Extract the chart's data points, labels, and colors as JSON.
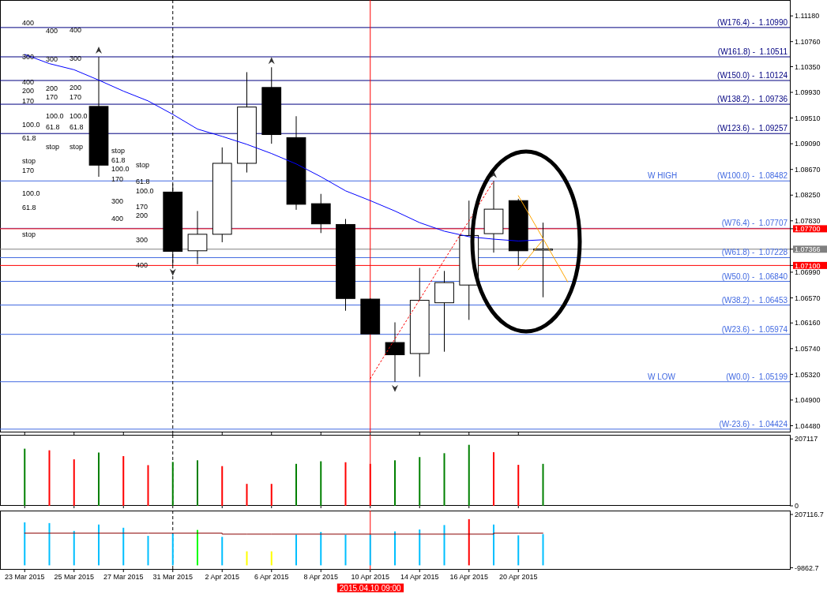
{
  "chart_data": [
    {
      "type": "candlestick",
      "categories": [
        "23 Mar 2015",
        null,
        "25 Mar 2015",
        null,
        "27 Mar 2015",
        null,
        "31 Mar 2015",
        null,
        "2 Apr 2015",
        null,
        "6 Apr 2015",
        null,
        "8 Apr 2015",
        null,
        "10 Apr 2015",
        null,
        "14 Apr 2015",
        null,
        "16 Apr 2015",
        null,
        "20 Apr 2015",
        null,
        null,
        null,
        null,
        null,
        null,
        null,
        null,
        null,
        null
      ],
      "ohlc": [
        null,
        null,
        null,
        [
          1.097,
          1.1051,
          1.0855,
          1.0874
        ],
        null,
        null,
        [
          1.083,
          1.0843,
          1.071,
          1.0733
        ],
        [
          1.0734,
          1.0799,
          1.0712,
          1.0761
        ],
        [
          1.0761,
          1.0903,
          1.0748,
          1.0877
        ],
        [
          1.0877,
          1.1026,
          1.0862,
          1.0969
        ],
        [
          1.1001,
          1.1034,
          1.0909,
          1.0924
        ],
        [
          1.0919,
          1.0954,
          1.0801,
          1.081
        ],
        [
          1.0811,
          1.0827,
          1.0763,
          1.0778
        ],
        [
          1.0777,
          1.0786,
          1.0636,
          1.0656
        ],
        [
          1.0655,
          1.0656,
          1.0598,
          1.0598
        ],
        [
          1.0584,
          1.0617,
          1.052,
          1.0564
        ],
        [
          1.0566,
          1.0706,
          1.0528,
          1.0653
        ],
        [
          1.0649,
          1.0701,
          1.0569,
          1.0682
        ],
        [
          1.0678,
          1.0816,
          1.0621,
          1.0759
        ],
        [
          1.0762,
          1.0848,
          1.0731,
          1.0802
        ],
        [
          1.0816,
          1.0819,
          1.071,
          1.0734
        ],
        [
          1.0735,
          1.078,
          1.0658,
          1.0737
        ],
        null,
        null,
        null,
        null,
        null,
        null,
        null,
        null,
        null
      ],
      "series": [
        {
          "type": "line",
          "color": "#0000ff",
          "values": [
            1.1055,
            1.104,
            1.103,
            1.1013,
            1.0995,
            1.0979,
            1.0957,
            1.0933,
            1.0921,
            1.0908,
            1.0893,
            1.0876,
            1.0855,
            1.0832,
            1.0816,
            1.0799,
            1.078,
            1.0766,
            1.0757,
            1.0753,
            1.075,
            1.0752,
            null,
            null,
            null,
            null,
            null,
            null,
            null,
            null,
            null
          ]
        },
        {
          "type": "line",
          "color": "#ff0000",
          "line_style": "dotted",
          "values": [
            null,
            null,
            null,
            null,
            null,
            null,
            null,
            null,
            null,
            null,
            null,
            null,
            null,
            null,
            1.0525,
            1.059,
            1.0654,
            1.0719,
            1.0783,
            1.0848,
            null,
            null,
            null,
            null,
            null,
            null,
            null,
            null,
            null,
            null,
            null
          ]
        },
        {
          "type": "line",
          "color": "#ffa500",
          "values": [
            null,
            null,
            null,
            null,
            null,
            null,
            null,
            null,
            null,
            null,
            null,
            null,
            null,
            null,
            null,
            null,
            null,
            null,
            null,
            null,
            1.0824,
            1.0754,
            1.0683,
            null,
            null,
            null,
            null,
            null,
            null,
            null,
            null
          ]
        },
        {
          "type": "line",
          "color": "#ffa500",
          "values": [
            null,
            null,
            null,
            null,
            null,
            null,
            null,
            null,
            null,
            null,
            null,
            null,
            null,
            null,
            null,
            null,
            null,
            null,
            null,
            null,
            1.0703,
            1.0752,
            null,
            null,
            null,
            null,
            null,
            null,
            null,
            null,
            null
          ]
        }
      ],
      "ylim": [
        1.0437,
        1.1144
      ],
      "yticks": [
        {
          "value": 1.1118,
          "label": "1.11180"
        },
        {
          "value": 1.1076,
          "label": "1.10760"
        },
        {
          "value": 1.1035,
          "label": "1.10350"
        },
        {
          "value": 1.0993,
          "label": "1.09930"
        },
        {
          "value": 1.0951,
          "label": "1.09510"
        },
        {
          "value": 1.0909,
          "label": "1.09090"
        },
        {
          "value": 1.0867,
          "label": "1.08670"
        },
        {
          "value": 1.0825,
          "label": "1.08250"
        },
        {
          "value": 1.0783,
          "label": "1.07830"
        },
        {
          "value": 1.077,
          "label": "1.07700"
        },
        {
          "value": 1.07366,
          "label": "1.07366"
        },
        {
          "value": 1.071,
          "label": "1.07100"
        },
        {
          "value": 1.0699,
          "label": "1.06990"
        },
        {
          "value": 1.0657,
          "label": "1.06570"
        },
        {
          "value": 1.0616,
          "label": "1.06160"
        },
        {
          "value": 1.0574,
          "label": "1.05740"
        },
        {
          "value": 1.0532,
          "label": "1.05320"
        },
        {
          "value": 1.049,
          "label": "1.04900"
        },
        {
          "value": 1.0448,
          "label": "1.04480"
        }
      ],
      "tick_labels": "y",
      "ref_lines": [
        {
          "axis": "y",
          "value": 1.1099,
          "label": "(W176.4) -  1.10990",
          "color": "#000080"
        },
        {
          "axis": "y",
          "value": 1.10511,
          "label": "(W161.8) -  1.10511",
          "color": "#000080"
        },
        {
          "axis": "y",
          "value": 1.10124,
          "label": "(W150.0) -  1.10124",
          "color": "#000080"
        },
        {
          "axis": "y",
          "value": 1.09736,
          "label": "(W138.2) -  1.09736",
          "color": "#000080"
        },
        {
          "axis": "y",
          "value": 1.09257,
          "label": "(W123.6) -  1.09257",
          "color": "#000080"
        },
        {
          "axis": "y",
          "value": 1.08482,
          "label": "(W100.0) -  1.08482",
          "color": "#4169e1"
        },
        {
          "axis": "y",
          "value": 1.07707,
          "label": "(W76.4) -  1.07707",
          "color": "#4169e1"
        },
        {
          "axis": "y",
          "value": 1.07228,
          "label": "(W61.8) -  1.07228",
          "color": "#4169e1"
        },
        {
          "axis": "y",
          "value": 1.0684,
          "label": "(W50.0) -  1.06840",
          "color": "#4169e1"
        },
        {
          "axis": "y",
          "value": 1.06453,
          "label": "(W38.2) -  1.06453",
          "color": "#4169e1"
        },
        {
          "axis": "y",
          "value": 1.05974,
          "label": "(W23.6) -  1.05974",
          "color": "#4169e1"
        },
        {
          "axis": "y",
          "value": 1.05199,
          "label": "(W0.0) -  1.05199",
          "color": "#4169e1"
        },
        {
          "axis": "y",
          "value": 1.04424,
          "label": "(W-23.6) -  1.04424",
          "color": "#4169e1"
        },
        {
          "axis": "y",
          "value": 1.077,
          "color": "#ff0000"
        },
        {
          "axis": "y",
          "value": 1.07366,
          "color": "#808080"
        },
        {
          "axis": "y",
          "value": 1.071,
          "color": "#ff0000"
        },
        {
          "axis": "x",
          "value": "31 Mar 2015",
          "color": "#000000",
          "line_style": "dashed"
        },
        {
          "axis": "x",
          "value": "10 Apr 2015",
          "color": "#ff0000"
        }
      ],
      "annotations": [
        {
          "text": "W HIGH",
          "y": 1.08482
        },
        {
          "text": "W LOW",
          "y": 1.05199
        },
        "400",
        "300",
        "400",
        "200",
        "170",
        "100.0",
        "61.8",
        "stop",
        "170",
        "100.0",
        "61.8",
        "stop",
        "400",
        "300",
        "200",
        "170",
        "100.0",
        "61.8",
        "stop",
        "400",
        "300",
        "200",
        "170",
        "100.0",
        "61.8",
        "stop",
        "stop",
        "61.8",
        "100.0",
        "170",
        "300",
        "400",
        "stop",
        "61.8",
        "100.0",
        "170",
        "200",
        "300",
        "400"
      ]
    },
    {
      "type": "bar",
      "categories": [
        "23 Mar 2015",
        null,
        "25 Mar 2015",
        null,
        "27 Mar 2015",
        null,
        "31 Mar 2015",
        null,
        "2 Apr 2015",
        null,
        "6 Apr 2015",
        null,
        "8 Apr 2015",
        null,
        "10 Apr 2015",
        null,
        "14 Apr 2015",
        null,
        "16 Apr 2015",
        null,
        "20 Apr 2015",
        null,
        null,
        null,
        null,
        null,
        null,
        null,
        null,
        null,
        null
      ],
      "values": [
        177000,
        172000,
        144000,
        165000,
        154000,
        126000,
        136000,
        141000,
        123000,
        68000,
        68000,
        130000,
        138000,
        135000,
        130000,
        141000,
        151000,
        163000,
        189000,
        166000,
        127000,
        130000,
        null,
        null,
        null,
        null,
        null,
        null,
        null,
        null,
        null
      ],
      "colors": [
        "#008000",
        "#ff0000",
        "#ff0000",
        "#008000",
        "#ff0000",
        "#ff0000",
        "#008000",
        "#008000",
        "#ff0000",
        "#ff0000",
        "#ff0000",
        "#008000",
        "#008000",
        "#ff0000",
        "#ff0000",
        "#008000",
        "#008000",
        "#008000",
        "#008000",
        "#ff0000",
        "#ff0000",
        "#008000",
        null,
        null,
        null,
        null,
        null,
        null,
        null,
        null,
        null
      ],
      "ylim": [
        0,
        220000
      ],
      "yticks": [
        0,
        207117
      ],
      "tick_labels": "y",
      "ref_lines": [
        {
          "axis": "x",
          "value": "31 Mar 2015",
          "color": "#000000",
          "line_style": "dashed"
        },
        {
          "axis": "x",
          "value": "10 Apr 2015",
          "color": "#ff0000"
        }
      ]
    },
    {
      "type": "bar",
      "categories": [
        "23 Mar 2015",
        null,
        "25 Mar 2015",
        null,
        "27 Mar 2015",
        null,
        "31 Mar 2015",
        null,
        "2 Apr 2015",
        null,
        "6 Apr 2015",
        null,
        "8 Apr 2015",
        null,
        "10 Apr 2015",
        null,
        "14 Apr 2015",
        null,
        "16 Apr 2015",
        null,
        "20 Apr 2015",
        null,
        null,
        null,
        null,
        null,
        null,
        null,
        null,
        null,
        null
      ],
      "series": [
        {
          "type": "bar",
          "values": [
            175000,
            172000,
            140000,
            166000,
            153000,
            120000,
            129000,
            144000,
            116000,
            57000,
            57000,
            125000,
            136000,
            125000,
            125000,
            138000,
            146000,
            164000,
            188000,
            166000,
            122000,
            127000,
            null,
            null,
            null,
            null,
            null,
            null,
            null,
            null,
            null
          ],
          "colors": [
            "#00bfff",
            "#00bfff",
            "#00bfff",
            "#00bfff",
            "#00bfff",
            "#00bfff",
            "#00bfff",
            "#00ff00",
            "#00bfff",
            "#ffff00",
            "#ffff00",
            "#00bfff",
            "#00bfff",
            "#00bfff",
            "#00bfff",
            "#00bfff",
            "#00bfff",
            "#00bfff",
            "#ff0000",
            "#00bfff",
            "#00bfff",
            "#00bfff",
            null,
            null,
            null,
            null,
            null,
            null,
            null,
            null,
            null
          ]
        },
        {
          "type": "step",
          "color": "#8b0000",
          "values": [
            131000,
            131000,
            131000,
            131000,
            131000,
            131000,
            131000,
            131000,
            127000,
            127000,
            127000,
            127000,
            127000,
            127000,
            127000,
            127000,
            127000,
            127000,
            127000,
            131000,
            131000,
            131000,
            null,
            null,
            null,
            null,
            null,
            null,
            null,
            null,
            null
          ]
        }
      ],
      "ylim": [
        -18000,
        223000
      ],
      "yticks": [
        -9862.7,
        207116.7
      ],
      "ref_lines": [
        {
          "axis": "x",
          "value": "31 Mar 2015",
          "color": "#000000",
          "line_style": "dashed"
        },
        {
          "axis": "x",
          "value": "10 Apr 2015",
          "label": "2015.04.10 09:00",
          "color": "#ff0000"
        }
      ]
    }
  ]
}
